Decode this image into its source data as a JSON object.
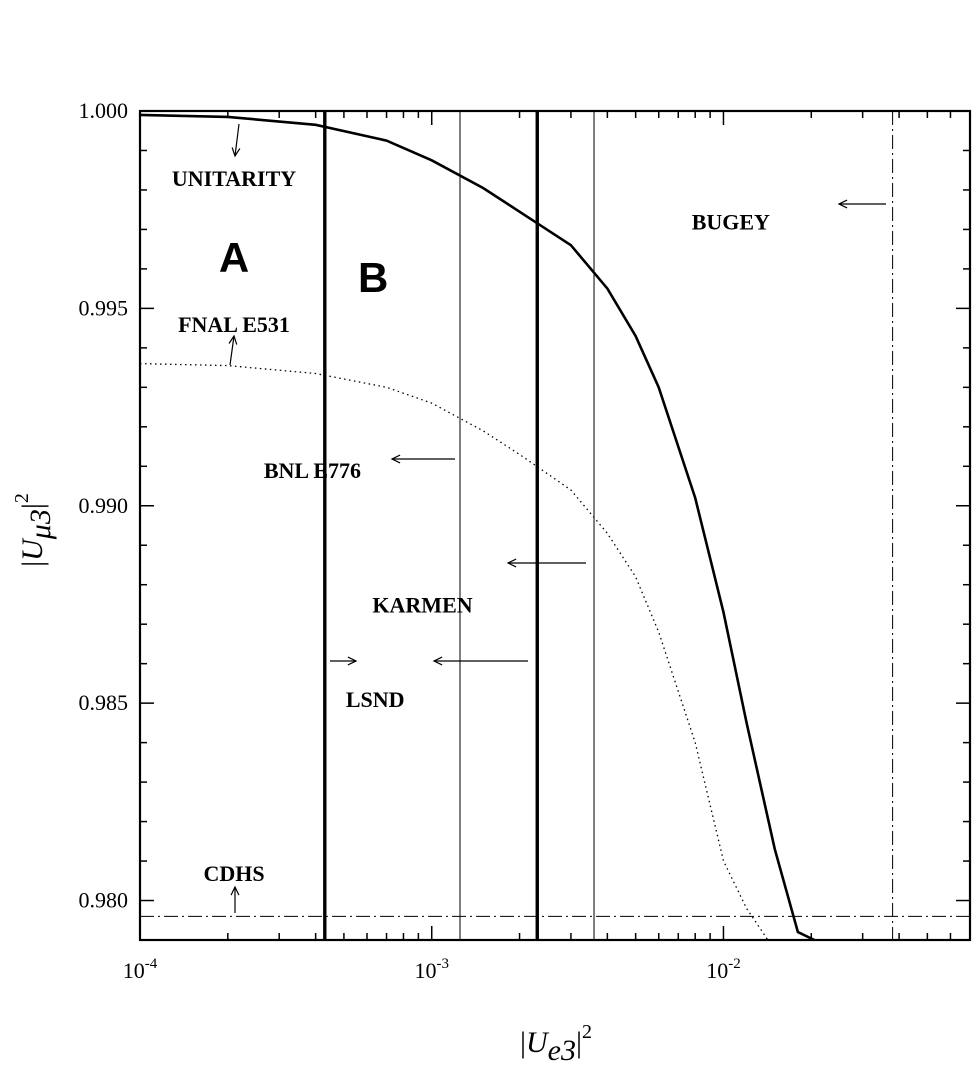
{
  "chart_data": {
    "type": "line",
    "xscale": "log",
    "xlim": [
      0.0001,
      0.07
    ],
    "ylim": [
      0.979,
      1.0
    ],
    "xticks": [
      {
        "value": 0.0001,
        "base": "10",
        "exp": "-4"
      },
      {
        "value": 0.001,
        "base": "10",
        "exp": "-3"
      },
      {
        "value": 0.01,
        "base": "10",
        "exp": "-2"
      }
    ],
    "yticks": [
      {
        "value": 1.0,
        "label": "1.000"
      },
      {
        "value": 0.995,
        "label": "0.995"
      },
      {
        "value": 0.99,
        "label": "0.990"
      },
      {
        "value": 0.985,
        "label": "0.985"
      },
      {
        "value": 0.98,
        "label": "0.980"
      }
    ],
    "xlabel": {
      "bar_left": "|",
      "main": "U",
      "sub": "e3",
      "bar_right": "|",
      "sup": "2"
    },
    "ylabel": {
      "bar_left": "|",
      "main": "U",
      "sub": "μ3",
      "bar_right": "|",
      "sup": "2"
    },
    "series": [
      {
        "style": "solid-thick",
        "x": [
          0.0001,
          0.0002,
          0.0004,
          0.0007,
          0.001,
          0.0015,
          0.002,
          0.003,
          0.004,
          0.005,
          0.006,
          0.008,
          0.01,
          0.012,
          0.015,
          0.018,
          0.0205
        ],
        "y": [
          0.9999,
          0.99985,
          0.99965,
          0.99925,
          0.99875,
          0.99805,
          0.99745,
          0.9966,
          0.9955,
          0.9943,
          0.993,
          0.9902,
          0.9873,
          0.9845,
          0.9813,
          0.9792,
          0.979
        ]
      },
      {
        "style": "dotted",
        "x": [
          0.0001,
          0.0002,
          0.0004,
          0.0007,
          0.001,
          0.0015,
          0.002,
          0.003,
          0.004,
          0.005,
          0.006,
          0.008,
          0.01,
          0.012,
          0.0142
        ],
        "y": [
          0.9936,
          0.99355,
          0.99335,
          0.993,
          0.9926,
          0.9919,
          0.9913,
          0.9904,
          0.9893,
          0.9882,
          0.9868,
          0.984,
          0.981,
          0.9798,
          0.979
        ]
      },
      {
        "style": "vline-thick",
        "x": 0.00043
      },
      {
        "style": "vline-thick",
        "x": 0.0023
      },
      {
        "style": "vline-thin",
        "x": 0.00125
      },
      {
        "style": "vline-thin",
        "x": 0.0036
      },
      {
        "style": "vline-dashdot",
        "x": 0.038
      },
      {
        "style": "hline-dashdot",
        "y": 0.9796
      }
    ],
    "regions": [
      {
        "label": "A",
        "x": 0.00021,
        "y": 0.9963
      },
      {
        "label": "B",
        "x": 0.00063,
        "y": 0.9958
      }
    ],
    "annotations": [
      {
        "text": "UNITARITY",
        "x": 0.00021,
        "y": 0.9983
      },
      {
        "text": "FNAL E531",
        "x": 0.00021,
        "y": 0.9946
      },
      {
        "text": "BNL E776",
        "x": 0.00039,
        "y": 0.9909
      },
      {
        "text": "KARMEN",
        "x": 0.00093,
        "y": 0.9875
      },
      {
        "text": "LSND",
        "x": 0.00064,
        "y": 0.9851
      },
      {
        "text": "CDHS",
        "x": 0.00021,
        "y": 0.9807
      },
      {
        "text": "BUGEY",
        "x": 0.0106,
        "y": 0.9972
      }
    ]
  }
}
